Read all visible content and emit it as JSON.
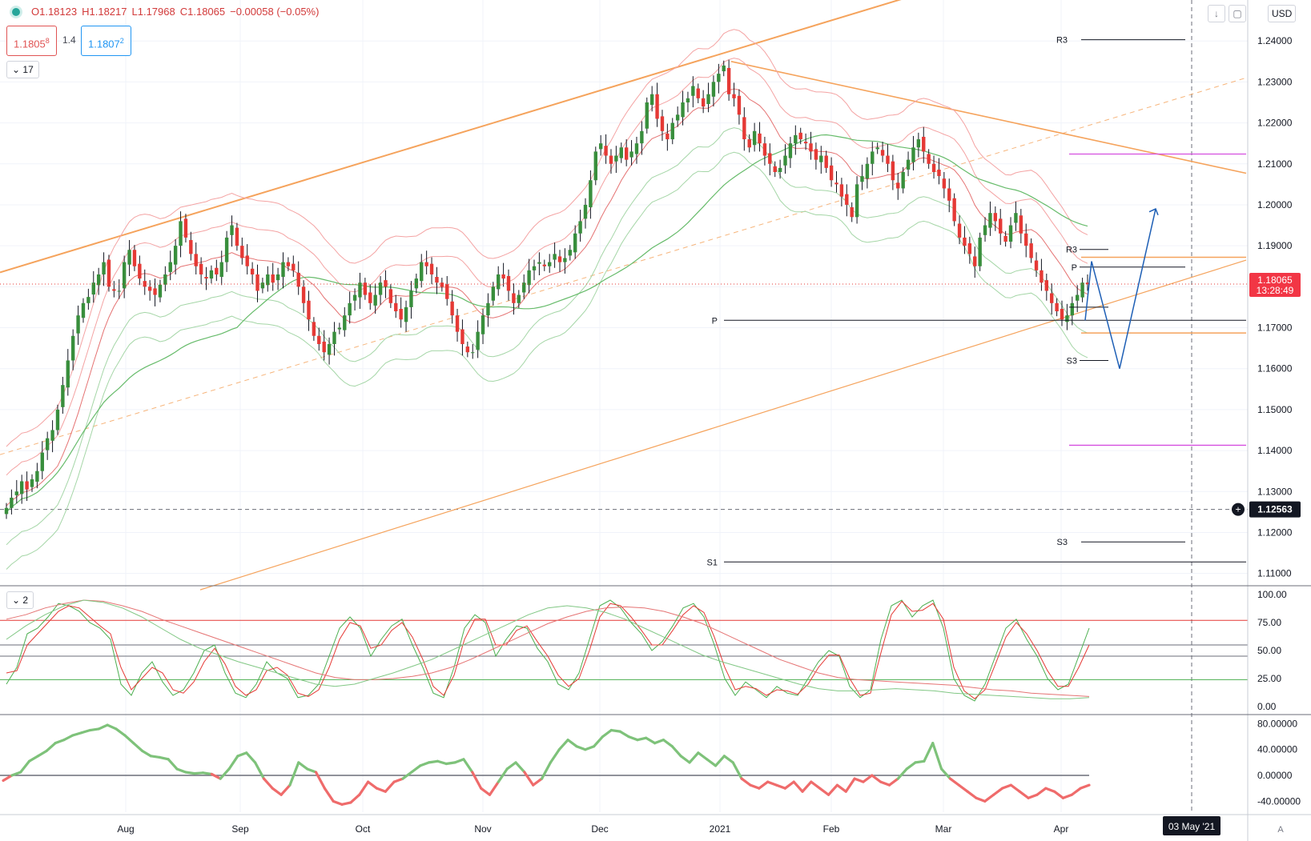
{
  "header": {
    "open": "O1.18123",
    "high": "H1.18217",
    "low": "L1.17968",
    "close": "C1.18065",
    "change": "−0.00058 (−0.05%)",
    "bid_main": "1.1805",
    "bid_sup": "8",
    "spread": "1.4",
    "ask_main": "1.1807",
    "ask_sup": "2",
    "indicator_count": "17",
    "currency": "USD"
  },
  "panes": {
    "oscillator_count": "2",
    "auto_label": "A"
  },
  "colors": {
    "bull": "#388e3c",
    "bear": "#e53935",
    "orange_line": "#f5a35c",
    "bb_red": "#f4a3a3",
    "bb_green": "#a5d6a7",
    "ma_green": "#66bb6a",
    "pivot_black": "#131722",
    "purple": "#d54fe0",
    "projection_blue": "#1e5fb5",
    "osc_green": "#4caf50",
    "osc_red": "#e53935"
  },
  "chart_data": [
    {
      "type": "candlestick",
      "pane": "price",
      "x_ticks": [
        "Aug",
        "Sep",
        "Oct",
        "Nov",
        "Dec",
        "2021",
        "Feb",
        "Mar",
        "Apr"
      ],
      "y_ticks": [
        "1.24000",
        "1.23000",
        "1.22000",
        "1.21000",
        "1.20000",
        "1.19000",
        "1.18000",
        "1.17000",
        "1.16000",
        "1.15000",
        "1.14000",
        "1.13000",
        "1.12000",
        "1.11000"
      ],
      "ylim": [
        1.107,
        1.25
      ],
      "last_price": "1.18065",
      "countdown": "13:28:49",
      "crosshair_price": "1.12563",
      "crosshair_date": "03 May '21",
      "pivot_labels": {
        "monthly_left": [
          {
            "label": "P",
            "value": 1.1718
          },
          {
            "label": "S1",
            "value": 1.1128
          }
        ],
        "monthly_right": [
          {
            "label": "R3",
            "value": 1.2403
          },
          {
            "label": "S3",
            "value": 1.1177
          }
        ],
        "weekly": [
          {
            "label": "R3",
            "value": 1.1891
          },
          {
            "label": "P",
            "value": 1.1848
          },
          {
            "label": "S3",
            "value": 1.162
          }
        ]
      },
      "horizontal_levels": {
        "purple": [
          1.2124,
          1.1413
        ],
        "orange": [
          1.1872,
          1.1687
        ]
      },
      "closes": [
        1.126,
        1.1285,
        1.13,
        1.1325,
        1.1305,
        1.133,
        1.135,
        1.1395,
        1.143,
        1.145,
        1.15,
        1.156,
        1.162,
        1.168,
        1.173,
        1.176,
        1.1775,
        1.181,
        1.183,
        1.186,
        1.18,
        1.179,
        1.179,
        1.186,
        1.189,
        1.185,
        1.182,
        1.18,
        1.179,
        1.178,
        1.1805,
        1.183,
        1.186,
        1.19,
        1.196,
        1.192,
        1.188,
        1.185,
        1.183,
        1.182,
        1.184,
        1.183,
        1.186,
        1.192,
        1.195,
        1.19,
        1.187,
        1.185,
        1.183,
        1.179,
        1.181,
        1.183,
        1.181,
        1.183,
        1.186,
        1.185,
        1.184,
        1.18,
        1.176,
        1.172,
        1.168,
        1.166,
        1.164,
        1.166,
        1.169,
        1.17,
        1.173,
        1.176,
        1.178,
        1.181,
        1.178,
        1.176,
        1.178,
        1.181,
        1.18,
        1.176,
        1.174,
        1.172,
        1.175,
        1.179,
        1.182,
        1.186,
        1.185,
        1.183,
        1.181,
        1.18,
        1.177,
        1.173,
        1.169,
        1.166,
        1.164,
        1.164,
        1.169,
        1.173,
        1.176,
        1.18,
        1.183,
        1.182,
        1.179,
        1.176,
        1.178,
        1.181,
        1.184,
        1.185,
        1.186,
        1.185,
        1.186,
        1.188,
        1.186,
        1.187,
        1.189,
        1.193,
        1.196,
        1.2,
        1.206,
        1.213,
        1.215,
        1.212,
        1.21,
        1.212,
        1.214,
        1.211,
        1.213,
        1.215,
        1.218,
        1.225,
        1.227,
        1.221,
        1.218,
        1.216,
        1.22,
        1.222,
        1.225,
        1.226,
        1.229,
        1.226,
        1.224,
        1.227,
        1.23,
        1.232,
        1.234,
        1.227,
        1.226,
        1.222,
        1.216,
        1.214,
        1.218,
        1.215,
        1.212,
        1.21,
        1.208,
        1.209,
        1.212,
        1.215,
        1.217,
        1.216,
        1.215,
        1.213,
        1.211,
        1.212,
        1.209,
        1.206,
        1.205,
        1.202,
        1.2,
        1.197,
        1.205,
        1.207,
        1.21,
        1.213,
        1.214,
        1.212,
        1.21,
        1.206,
        1.204,
        1.208,
        1.211,
        1.214,
        1.216,
        1.213,
        1.21,
        1.208,
        1.207,
        1.204,
        1.201,
        1.196,
        1.192,
        1.19,
        1.188,
        1.185,
        1.192,
        1.195,
        1.198,
        1.196,
        1.193,
        1.191,
        1.195,
        1.198,
        1.193,
        1.19,
        1.187,
        1.184,
        1.181,
        1.179,
        1.176,
        1.174,
        1.172,
        1.173,
        1.176,
        1.178,
        1.181,
        1.1806
      ]
    },
    {
      "type": "line",
      "pane": "stochastic",
      "y_ticks": [
        "100.00",
        "75.00",
        "50.00",
        "25.00",
        "0.00"
      ],
      "ylim": [
        0,
        100
      ],
      "levels": [
        77,
        55,
        45,
        24
      ],
      "series": [
        {
          "color": "#4caf50",
          "values": [
            20,
            35,
            65,
            70,
            80,
            92,
            90,
            85,
            75,
            70,
            60,
            20,
            10,
            30,
            40,
            22,
            10,
            15,
            30,
            50,
            55,
            30,
            12,
            8,
            20,
            40,
            30,
            25,
            8,
            10,
            20,
            45,
            70,
            80,
            70,
            45,
            60,
            72,
            78,
            55,
            35,
            12,
            8,
            35,
            70,
            82,
            75,
            45,
            60,
            72,
            70,
            52,
            40,
            20,
            15,
            30,
            60,
            90,
            95,
            88,
            75,
            65,
            50,
            58,
            72,
            88,
            92,
            80,
            55,
            25,
            10,
            22,
            15,
            8,
            18,
            12,
            10,
            25,
            40,
            50,
            45,
            18,
            8,
            15,
            60,
            90,
            95,
            80,
            90,
            95,
            70,
            25,
            10,
            5,
            20,
            45,
            70,
            78,
            60,
            45,
            25,
            15,
            20,
            45,
            70
          ]
        },
        {
          "color": "#e53935",
          "values": [
            30,
            32,
            55,
            65,
            75,
            85,
            90,
            88,
            80,
            72,
            65,
            35,
            15,
            25,
            35,
            30,
            15,
            12,
            22,
            40,
            52,
            38,
            18,
            10,
            15,
            32,
            35,
            28,
            12,
            9,
            15,
            35,
            60,
            75,
            72,
            52,
            55,
            68,
            75,
            62,
            42,
            18,
            10,
            28,
            60,
            78,
            78,
            55,
            55,
            68,
            72,
            58,
            45,
            28,
            18,
            25,
            50,
            80,
            92,
            90,
            80,
            68,
            55,
            55,
            68,
            82,
            90,
            84,
            62,
            35,
            15,
            18,
            16,
            10,
            15,
            14,
            11,
            20,
            35,
            46,
            46,
            25,
            10,
            12,
            48,
            82,
            94,
            85,
            86,
            92,
            78,
            35,
            14,
            7,
            15,
            38,
            62,
            75,
            65,
            50,
            32,
            18,
            18,
            35,
            55
          ]
        },
        {
          "color": "#e57373",
          "values": [
            78,
            82,
            88,
            92,
            95,
            94,
            90,
            85,
            78,
            72,
            66,
            60,
            54,
            48,
            42,
            36,
            30,
            26,
            24,
            24,
            25,
            27,
            30,
            35,
            42,
            50,
            58,
            66,
            74,
            80,
            85,
            88,
            89,
            88,
            85,
            80,
            74,
            66,
            58,
            50,
            42,
            36,
            30,
            26,
            24,
            23,
            22,
            21,
            20,
            19,
            17,
            15,
            14,
            12,
            11,
            10,
            9
          ]
        },
        {
          "color": "#81c784",
          "values": [
            60,
            72,
            82,
            90,
            95,
            93,
            88,
            80,
            70,
            60,
            52,
            46,
            40,
            35,
            30,
            25,
            20,
            18,
            20,
            25,
            30,
            36,
            42,
            50,
            58,
            66,
            74,
            82,
            88,
            90,
            88,
            84,
            78,
            70,
            62,
            54,
            46,
            40,
            35,
            30,
            25,
            20,
            16,
            14,
            14,
            15,
            16,
            15,
            14,
            12,
            11,
            10,
            9,
            8,
            7,
            7,
            8
          ]
        }
      ]
    },
    {
      "type": "line",
      "pane": "momentum",
      "y_ticks": [
        "80.00000",
        "40.00000",
        "0.00000",
        "-40.00000"
      ],
      "ylim": [
        -52,
        88
      ],
      "zero_line": 0,
      "values": [
        -8,
        0,
        5,
        22,
        30,
        38,
        50,
        55,
        62,
        66,
        70,
        72,
        78,
        72,
        62,
        50,
        38,
        30,
        28,
        25,
        10,
        5,
        3,
        4,
        2,
        -5,
        10,
        30,
        35,
        20,
        -5,
        -20,
        -30,
        -15,
        20,
        10,
        5,
        -20,
        -40,
        -45,
        -42,
        -30,
        -10,
        -20,
        -25,
        -10,
        -5,
        5,
        15,
        20,
        22,
        18,
        20,
        25,
        5,
        -20,
        -30,
        -10,
        10,
        20,
        5,
        -15,
        -5,
        20,
        40,
        55,
        45,
        40,
        45,
        60,
        70,
        68,
        60,
        55,
        58,
        50,
        55,
        45,
        30,
        20,
        35,
        25,
        15,
        30,
        20,
        -5,
        -15,
        -20,
        -10,
        -15,
        -20,
        -10,
        -25,
        -10,
        -20,
        -30,
        -15,
        -25,
        -5,
        -10,
        0,
        -10,
        -15,
        -5,
        10,
        20,
        22,
        50,
        10,
        -5,
        -15,
        -25,
        -35,
        -40,
        -30,
        -20,
        -15,
        -25,
        -35,
        -30,
        -20,
        -25,
        -35,
        -30,
        -20,
        -15
      ]
    }
  ]
}
